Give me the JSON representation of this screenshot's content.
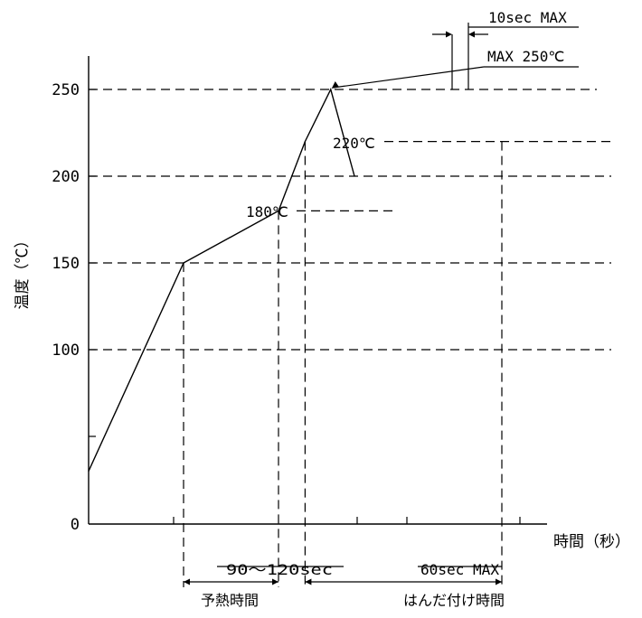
{
  "chart_data": {
    "type": "line",
    "title": "",
    "xlabel": "時間（秒）",
    "ylabel": "温度（℃）",
    "y_ticks": [
      "0",
      "100",
      "150",
      "200",
      "250"
    ],
    "ylim": [
      0,
      250
    ],
    "grid": "dashed horizontal lines at 100, 150, 200, 250; dashed vertical drop lines",
    "series": [
      {
        "x": [
          0,
          1.0,
          2.0,
          2.28,
          2.55,
          2.8
        ],
        "y": [
          30,
          150,
          180,
          220,
          250,
          200
        ]
      }
    ],
    "annotations": {
      "peak_time": "10sec MAX",
      "peak_temp": "MAX 250℃",
      "liquidus": "220℃",
      "preheat_end": "180℃",
      "preheat_duration": "90～120sec",
      "preheat_label": "予熱時間",
      "soldering_duration": "60sec MAX",
      "soldering_label": "はんだ付け時間"
    }
  }
}
